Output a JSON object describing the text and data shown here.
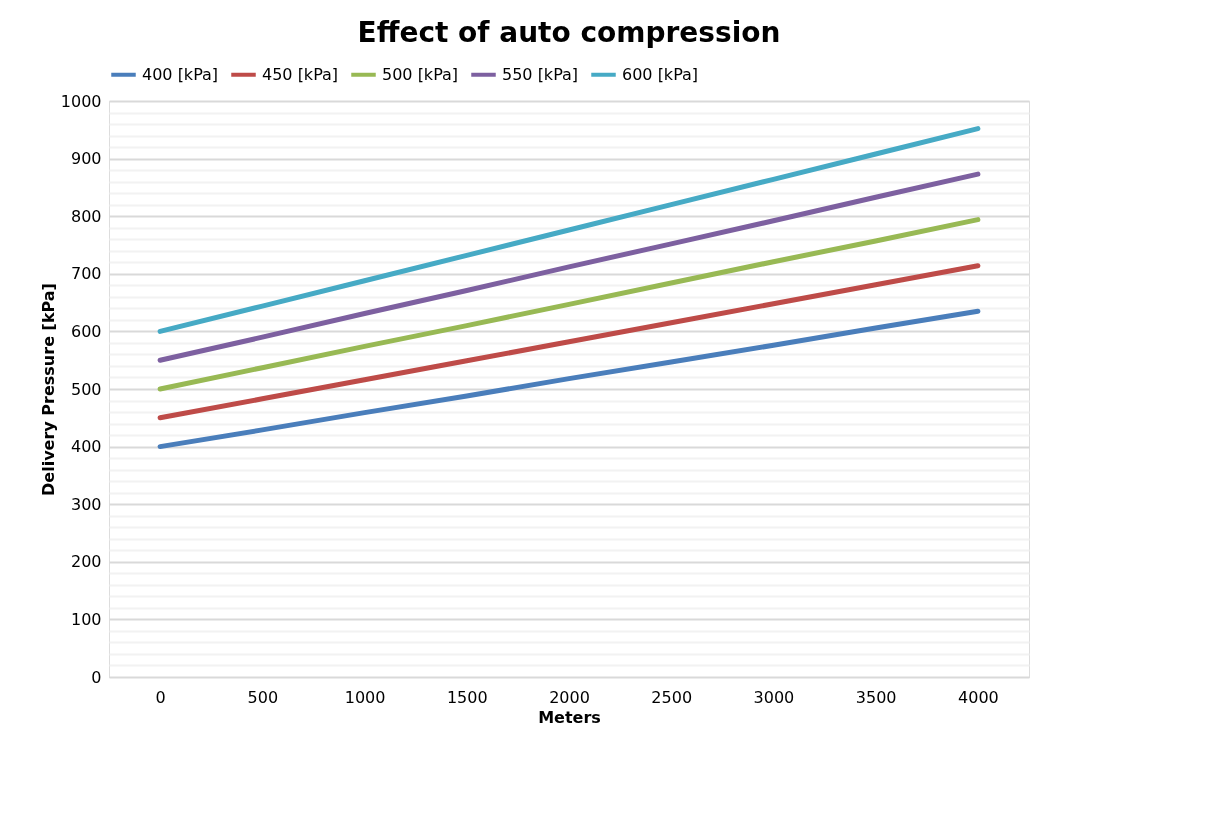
{
  "chart_data": {
    "type": "line",
    "title": "Effect of auto compression",
    "xlabel": "Meters",
    "ylabel": "Delivery Pressure [kPa]",
    "categories": [
      "0",
      "500",
      "1000",
      "1500",
      "2000",
      "2500",
      "3000",
      "3500",
      "4000"
    ],
    "series": [
      {
        "name": "400 [kPa]",
        "color": "#4a7ebb",
        "values": [
          400,
          429,
          459,
          488,
          518,
          547,
          576,
          606,
          635
        ]
      },
      {
        "name": "450 [kPa]",
        "color": "#be4b48",
        "values": [
          450,
          483,
          516,
          549,
          582,
          615,
          648,
          681,
          714
        ]
      },
      {
        "name": "500 [kPa]",
        "color": "#98b954",
        "values": [
          500,
          537,
          574,
          610,
          647,
          684,
          721,
          757,
          794
        ]
      },
      {
        "name": "550 [kPa]",
        "color": "#7d60a0",
        "values": [
          550,
          590,
          631,
          671,
          712,
          752,
          792,
          833,
          873
        ]
      },
      {
        "name": "600 [kPa]",
        "color": "#46aac5",
        "values": [
          600,
          644,
          688,
          732,
          776,
          820,
          864,
          908,
          952
        ]
      }
    ],
    "ylim": [
      0,
      1000
    ],
    "yticks": [
      0,
      {
        "value": 20,
        "label": null
      },
      {
        "value": 40,
        "label": null
      },
      {
        "value": 60,
        "label": null
      },
      {
        "value": 80,
        "label": null
      },
      100,
      {
        "value": 120,
        "label": null
      },
      {
        "value": 140,
        "label": null
      },
      {
        "value": 160,
        "label": null
      },
      {
        "value": 180,
        "label": null
      },
      200,
      {
        "value": 220,
        "label": null
      },
      {
        "value": 240,
        "label": null
      },
      {
        "value": 260,
        "label": null
      },
      {
        "value": 280,
        "label": null
      },
      300,
      {
        "value": 320,
        "label": null
      },
      {
        "value": 340,
        "label": null
      },
      {
        "value": 360,
        "label": null
      },
      {
        "value": 380,
        "label": null
      },
      400,
      {
        "value": 420,
        "label": null
      },
      {
        "value": 440,
        "label": null
      },
      {
        "value": 460,
        "label": null
      },
      {
        "value": 480,
        "label": null
      },
      500,
      {
        "value": 520,
        "label": null
      },
      {
        "value": 540,
        "label": null
      },
      {
        "value": 560,
        "label": null
      },
      {
        "value": 580,
        "label": null
      },
      600,
      {
        "value": 620,
        "label": null
      },
      {
        "value": 640,
        "label": null
      },
      {
        "value": 660,
        "label": null
      },
      {
        "value": 680,
        "label": null
      },
      700,
      {
        "value": 720,
        "label": null
      },
      {
        "value": 740,
        "label": null
      },
      {
        "value": 760,
        "label": null
      },
      {
        "value": 780,
        "label": null
      },
      800,
      {
        "value": 820,
        "label": null
      },
      {
        "value": 840,
        "label": null
      },
      {
        "value": 860,
        "label": null
      },
      {
        "value": 880,
        "label": null
      },
      900,
      {
        "value": 920,
        "label": null
      },
      {
        "value": 940,
        "label": null
      },
      {
        "value": 960,
        "label": null
      },
      {
        "value": 980,
        "label": null
      },
      1000
    ],
    "grid": "y",
    "legend": "top",
    "marker": "none",
    "line_style": "solid"
  }
}
